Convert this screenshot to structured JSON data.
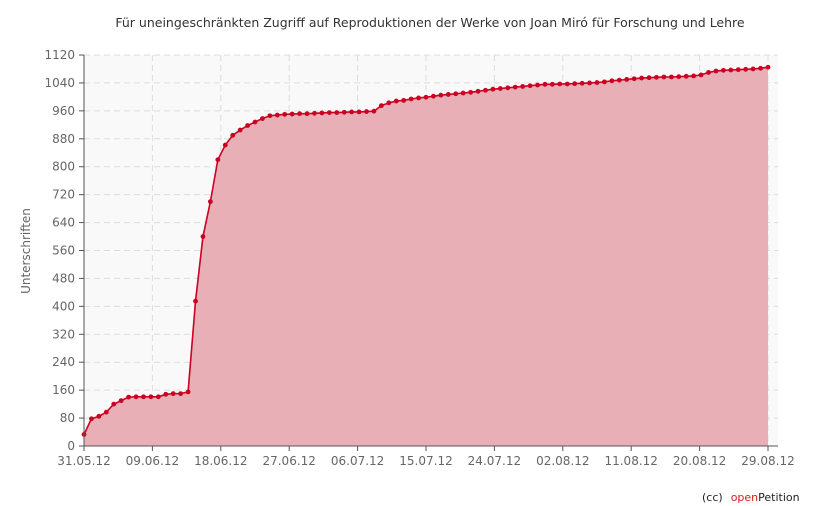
{
  "chart_data": {
    "type": "area",
    "title": "Für uneingeschränkten Zugriff auf Reproduktionen der Werke von Joan Miró für Forschung und Lehre",
    "xlabel": "",
    "ylabel": "Unterschriften",
    "ylim": [
      0,
      1120
    ],
    "y_ticks": [
      "0",
      "80",
      "160",
      "240",
      "320",
      "400",
      "480",
      "560",
      "640",
      "720",
      "800",
      "880",
      "960",
      "1040",
      "1120"
    ],
    "x_ticks": [
      "31.05.12",
      "09.06.12",
      "18.06.12",
      "27.06.12",
      "06.07.12",
      "15.07.12",
      "24.07.12",
      "02.08.12",
      "11.08.12",
      "20.08.12",
      "29.08.12"
    ],
    "x_start": "31.05.12",
    "x_end": "29.08.12",
    "grid": true,
    "line_color": "#cc0022",
    "fill_color": "#e8b0b6",
    "values": [
      33,
      78,
      85,
      97,
      120,
      130,
      140,
      141,
      141,
      141,
      141,
      148,
      150,
      150,
      155,
      415,
      600,
      700,
      820,
      862,
      890,
      905,
      918,
      928,
      938,
      946,
      948,
      950,
      951,
      952,
      952,
      953,
      954,
      955,
      955,
      956,
      957,
      957,
      958,
      959,
      975,
      983,
      988,
      990,
      994,
      997,
      999,
      1002,
      1005,
      1007,
      1009,
      1011,
      1013,
      1016,
      1019,
      1022,
      1024,
      1026,
      1028,
      1030,
      1032,
      1034,
      1036,
      1036,
      1037,
      1037,
      1038,
      1039,
      1040,
      1041,
      1043,
      1046,
      1048,
      1050,
      1052,
      1054,
      1055,
      1056,
      1057,
      1057,
      1058,
      1059,
      1060,
      1063,
      1070,
      1074,
      1076,
      1077,
      1078,
      1079,
      1080,
      1082,
      1085
    ]
  },
  "footer": {
    "cc": "(cc)",
    "brand_open": "open",
    "brand_rest": "Petition"
  }
}
